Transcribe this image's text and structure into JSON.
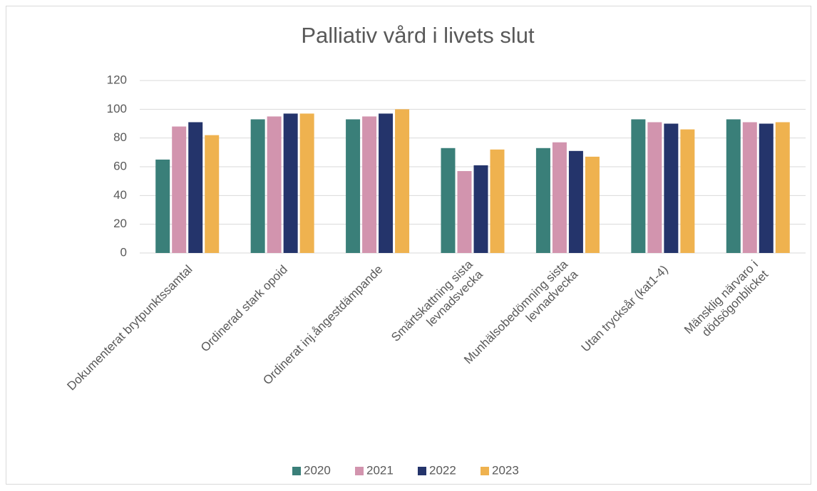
{
  "chart_data": {
    "type": "bar",
    "title": "Palliativ vård i livets slut",
    "categories": [
      "Dokumenterat brytpunktssamtal",
      "Ordinerad stark opoid",
      "Ordinerat inj.ångestdämpande",
      "Smärtskattning sista\nlevnadsvecka",
      "Munhälsobedömning sista\nlevnadvecka",
      "Utan trycksår (kat1-4)",
      "Mänsklig närvaro i\ndödsögonblicket"
    ],
    "series": [
      {
        "name": "2020",
        "color": "#3a7f79",
        "values": [
          65,
          93,
          93,
          73,
          73,
          93,
          93
        ]
      },
      {
        "name": "2021",
        "color": "#d294ae",
        "values": [
          88,
          95,
          95,
          57,
          77,
          91,
          91
        ]
      },
      {
        "name": "2022",
        "color": "#24346b",
        "values": [
          91,
          97,
          97,
          61,
          71,
          90,
          90
        ]
      },
      {
        "name": "2023",
        "color": "#efb24f",
        "values": [
          82,
          97,
          100,
          72,
          67,
          86,
          91
        ]
      }
    ],
    "ylim": [
      0,
      120
    ],
    "yticks": [
      0,
      20,
      40,
      60,
      80,
      100,
      120
    ],
    "grid": true,
    "legend": "bottom"
  }
}
